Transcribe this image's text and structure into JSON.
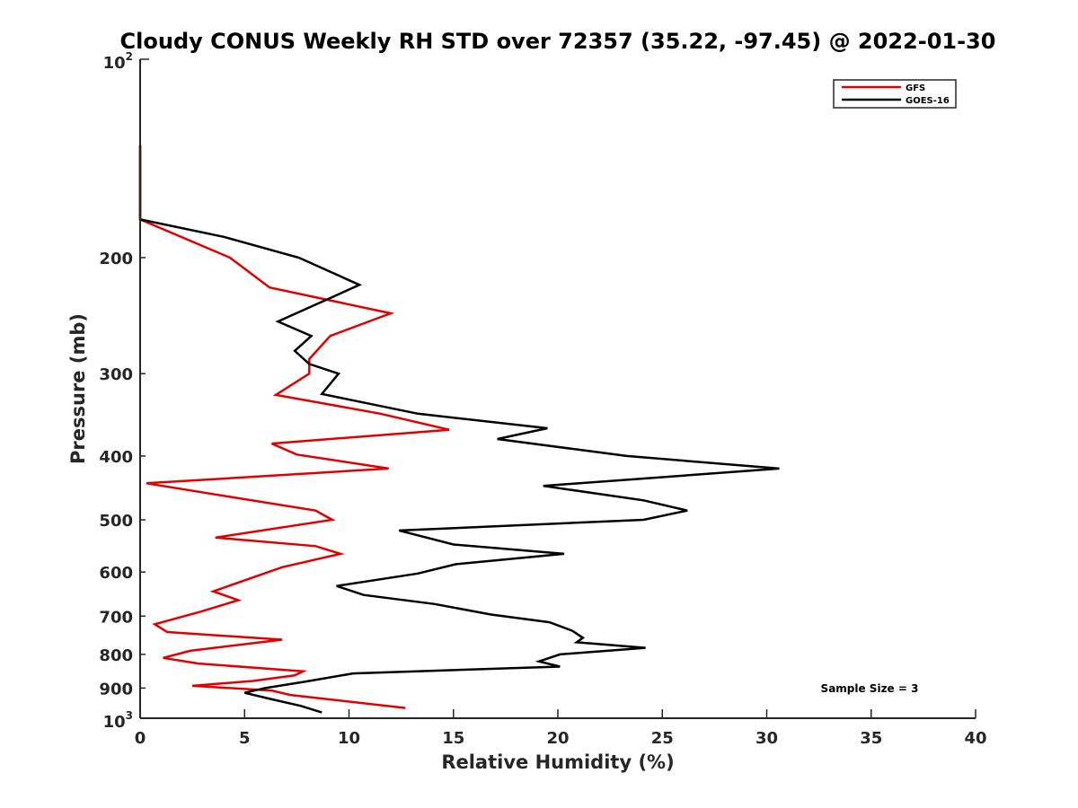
{
  "chart_data": {
    "type": "line",
    "title": "Cloudy CONUS Weekly RH STD over 72357 (35.22, -97.45) @ 2022-01-30",
    "xlabel": "Relative Humidity (%)",
    "ylabel": "Pressure (mb)",
    "xlim": [
      0,
      40
    ],
    "ylim": [
      100,
      1000
    ],
    "y_scale": "log",
    "y_reversed": true,
    "grid": false,
    "legend_position": "top-right",
    "x_ticks": [
      0,
      5,
      10,
      15,
      20,
      25,
      30,
      35,
      40
    ],
    "x_tick_labels": [
      "0",
      "5",
      "10",
      "15",
      "20",
      "25",
      "30",
      "35",
      "40"
    ],
    "y_ticks": [
      {
        "value": 100,
        "base": "10",
        "exp": "2"
      },
      {
        "value": 200,
        "label": "200"
      },
      {
        "value": 300,
        "label": "300"
      },
      {
        "value": 400,
        "label": "400"
      },
      {
        "value": 500,
        "label": "500"
      },
      {
        "value": 600,
        "label": "600"
      },
      {
        "value": 700,
        "label": "700"
      },
      {
        "value": 800,
        "label": "800"
      },
      {
        "value": 900,
        "label": "900"
      },
      {
        "value": 1000,
        "base": "10",
        "exp": "3"
      }
    ],
    "annotation": "Sample Size = 3",
    "series": [
      {
        "name": "GFS",
        "color": "#e00000",
        "points": [
          [
            0,
            135
          ],
          [
            0,
            150
          ],
          [
            0,
            175
          ],
          [
            4.3,
            200
          ],
          [
            6.2,
            222
          ],
          [
            12.0,
            243
          ],
          [
            9.1,
            263
          ],
          [
            8.1,
            285
          ],
          [
            8.1,
            300
          ],
          [
            6.5,
            323
          ],
          [
            11.5,
            345
          ],
          [
            14.8,
            365
          ],
          [
            6.3,
            383
          ],
          [
            7.5,
            398
          ],
          [
            11.9,
            418
          ],
          [
            0.3,
            440
          ],
          [
            4.6,
            463
          ],
          [
            8.4,
            484
          ],
          [
            9.2,
            500
          ],
          [
            3.6,
            532
          ],
          [
            8.4,
            548
          ],
          [
            9.6,
            563
          ],
          [
            6.8,
            590
          ],
          [
            3.5,
            642
          ],
          [
            4.7,
            662
          ],
          [
            2.9,
            689
          ],
          [
            0.7,
            720
          ],
          [
            1.3,
            740
          ],
          [
            6.8,
            760
          ],
          [
            2.4,
            790
          ],
          [
            1.1,
            810
          ],
          [
            2.8,
            826
          ],
          [
            7.8,
            849
          ],
          [
            7.4,
            861
          ],
          [
            5.4,
            878
          ],
          [
            2.5,
            893
          ],
          [
            6.3,
            908
          ],
          [
            7.2,
            922
          ],
          [
            12.7,
            965
          ]
        ]
      },
      {
        "name": "GOES-16",
        "color": "#000000",
        "points": [
          [
            0,
            135
          ],
          [
            0,
            150
          ],
          [
            0,
            175
          ],
          [
            4.0,
            186
          ],
          [
            7.6,
            200
          ],
          [
            10.5,
            220
          ],
          [
            6.6,
            250
          ],
          [
            8.2,
            263
          ],
          [
            7.4,
            277
          ],
          [
            8.1,
            290
          ],
          [
            9.5,
            300
          ],
          [
            8.7,
            322
          ],
          [
            13.3,
            345
          ],
          [
            19.5,
            363
          ],
          [
            17.1,
            377
          ],
          [
            23.3,
            400
          ],
          [
            30.6,
            418
          ],
          [
            19.3,
            444
          ],
          [
            24.1,
            467
          ],
          [
            26.2,
            484
          ],
          [
            24.1,
            500
          ],
          [
            12.4,
            519
          ],
          [
            15.0,
            545
          ],
          [
            20.3,
            563
          ],
          [
            15.1,
            584
          ],
          [
            13.3,
            603
          ],
          [
            9.4,
            630
          ],
          [
            10.7,
            650
          ],
          [
            14.1,
            671
          ],
          [
            16.8,
            696
          ],
          [
            19.6,
            715
          ],
          [
            20.7,
            737
          ],
          [
            21.2,
            755
          ],
          [
            20.9,
            767
          ],
          [
            24.2,
            782
          ],
          [
            20.1,
            800
          ],
          [
            19.1,
            820
          ],
          [
            20.1,
            835
          ],
          [
            10.2,
            855
          ],
          [
            8.1,
            878
          ],
          [
            6.0,
            900
          ],
          [
            5.0,
            915
          ],
          [
            6.3,
            936
          ],
          [
            7.7,
            958
          ],
          [
            8.7,
            980
          ]
        ]
      }
    ]
  }
}
